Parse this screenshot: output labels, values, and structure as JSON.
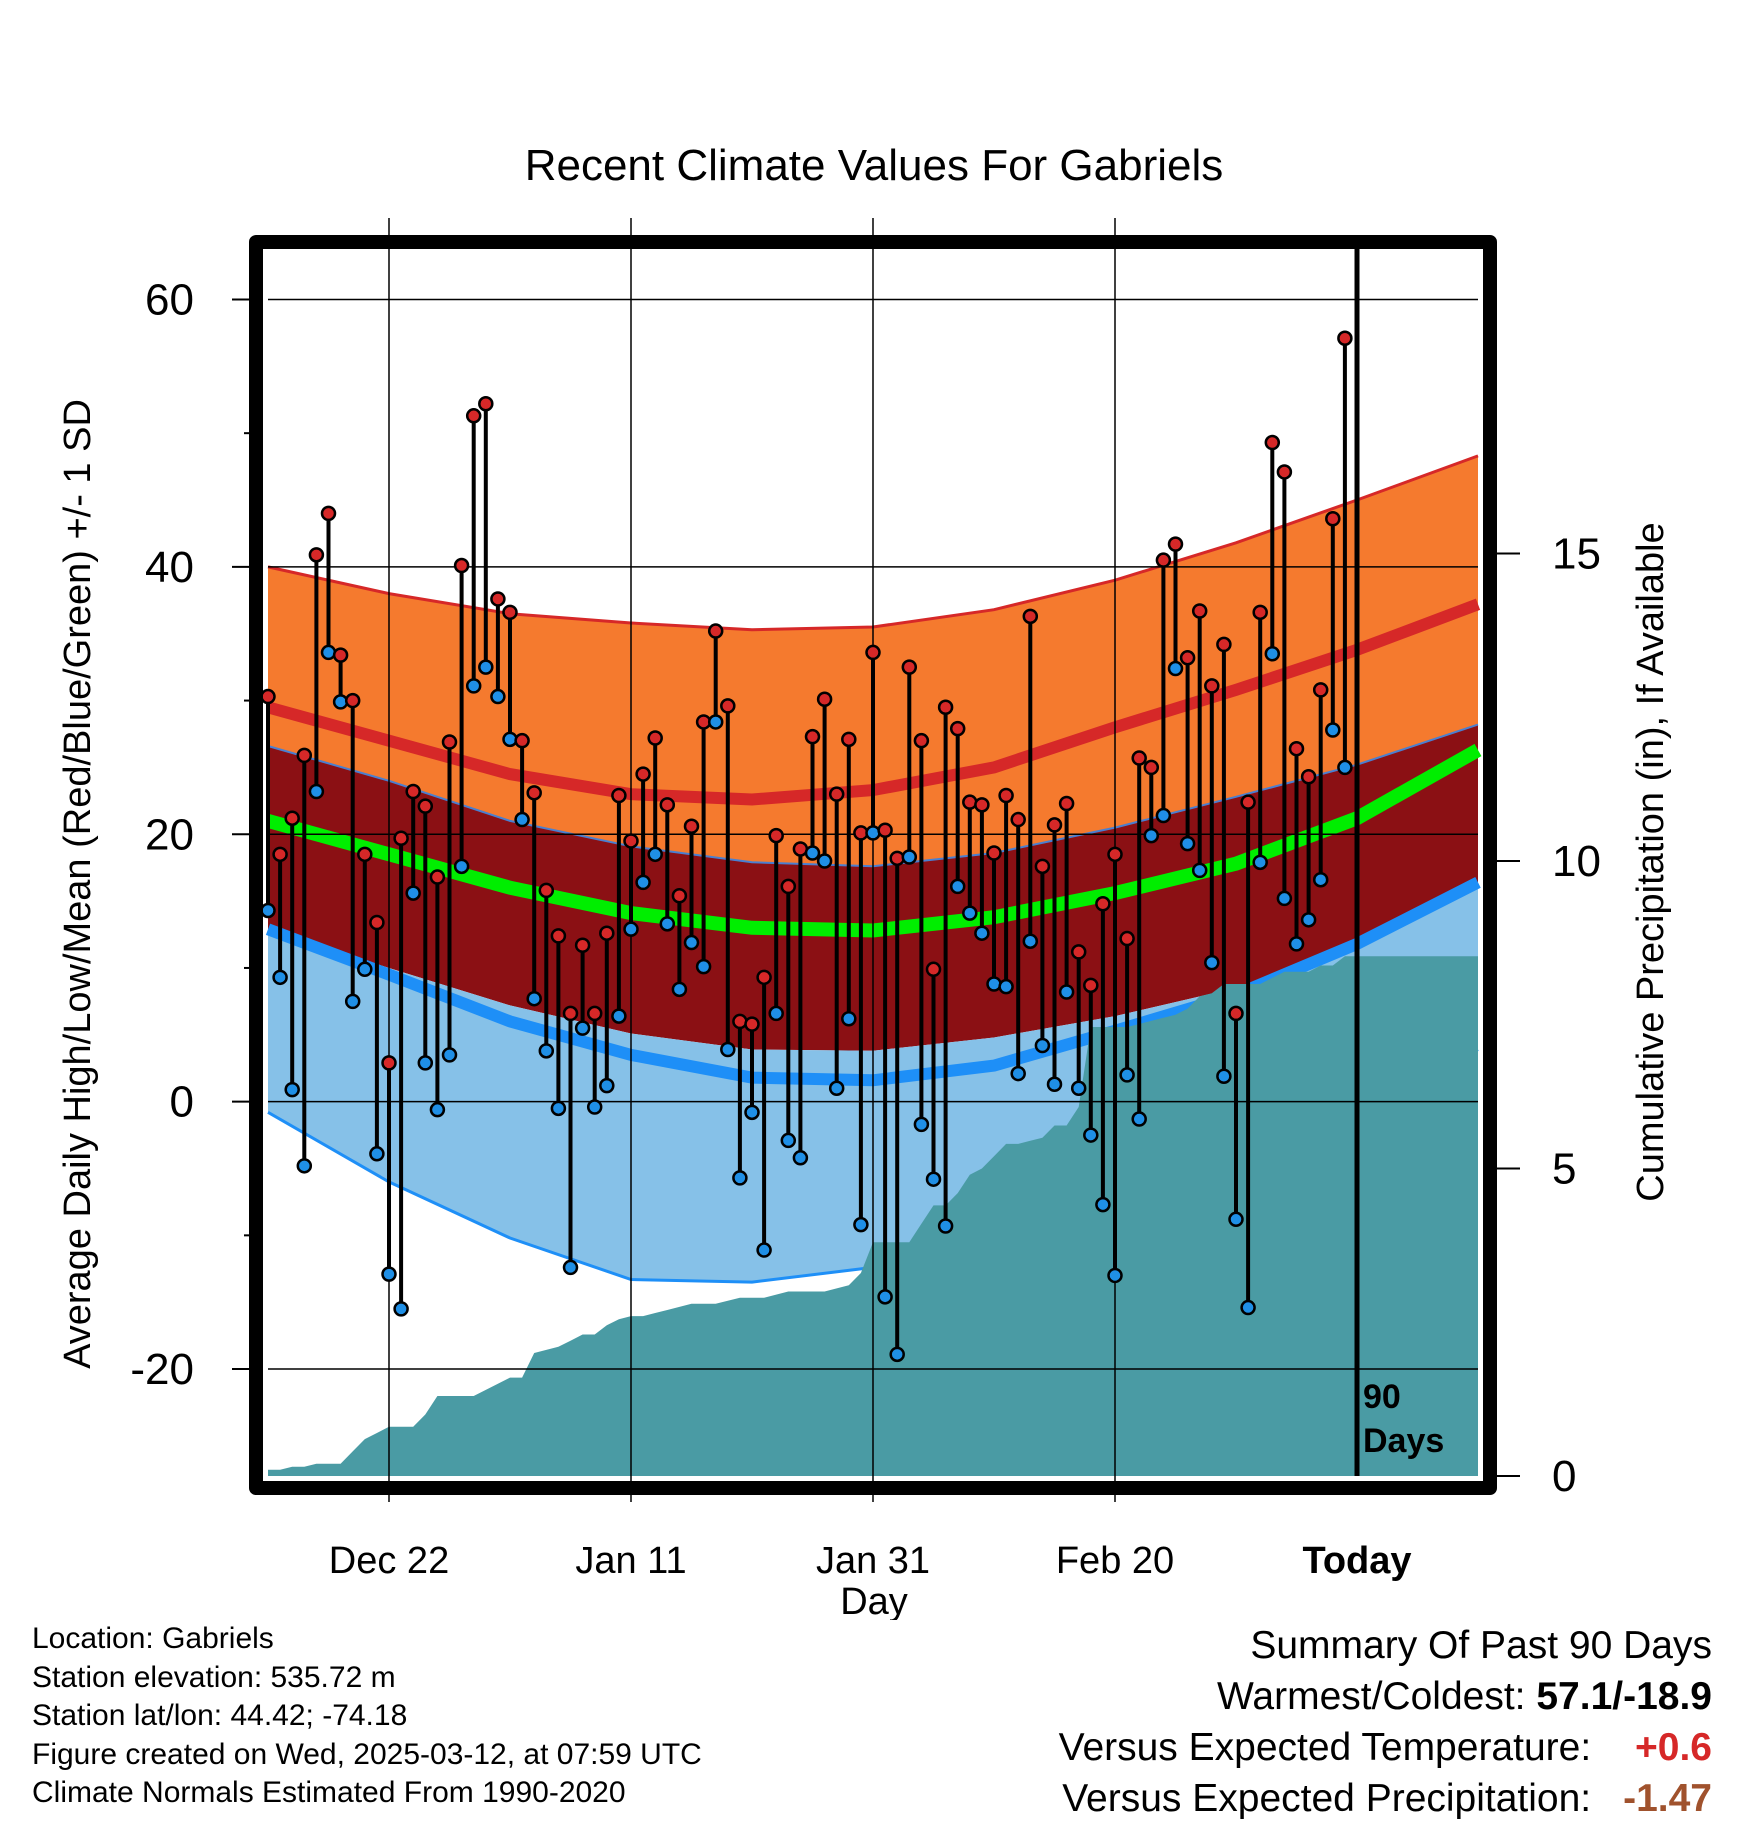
{
  "chart_data": {
    "type": "line",
    "title": "Recent Climate Values For Gabriels",
    "xlabel": "Day",
    "ylabel_left": "Average Daily High/Low/Mean (Red/Blue/Green) +/- 1 SD",
    "ylabel_right": "Cumulative Precipitation (in), If Available",
    "x_ticks": [
      {
        "day": 10,
        "label": "Dec 22"
      },
      {
        "day": 30,
        "label": "Jan 11"
      },
      {
        "day": 50,
        "label": "Jan 31"
      },
      {
        "day": 70,
        "label": "Feb 20"
      },
      {
        "day": 90,
        "label": "Today"
      }
    ],
    "xlim": [
      0,
      100
    ],
    "ylim_temp": [
      -28,
      64
    ],
    "y_ticks_temp": [
      -20,
      0,
      20,
      40,
      60
    ],
    "ylim_precip": [
      0,
      20
    ],
    "y_ticks_precip": [
      0,
      5,
      10,
      15
    ],
    "today_marker": {
      "day": 90,
      "label_line1": "90",
      "label_line2": "Days"
    },
    "grid": true,
    "colors": {
      "high_band": "#f57a2e",
      "normal_high": "#d62828",
      "normal_mean": "#00ee00",
      "mean_band": "#8b1014",
      "low_band": "#86c1e8",
      "normal_low": "#1e8ff7",
      "precip": "#4a9ba4",
      "high_marker": "#d62828",
      "low_marker": "#1f8fe6"
    },
    "normals": {
      "days": [
        0,
        10,
        20,
        30,
        40,
        50,
        60,
        70,
        80,
        90,
        100
      ],
      "high_upper": [
        40,
        38,
        36.5,
        35.8,
        35.3,
        35.5,
        36.8,
        39,
        41.8,
        45,
        48.3
      ],
      "high_normal": [
        29.5,
        27,
        24.5,
        23,
        22.6,
        23.3,
        25,
        28,
        30.8,
        33.8,
        37.2
      ],
      "high_lower": [
        21.8,
        18.7,
        15.7,
        13.5,
        12.6,
        12.8,
        14.6,
        17.6,
        20.7,
        23.8,
        28.2
      ],
      "mean_upper": [
        26.6,
        24,
        21,
        19.1,
        17.9,
        17.6,
        18.6,
        20.5,
        22.8,
        25.2,
        28.2
      ],
      "mean_normal": [
        21,
        18.5,
        16,
        14.1,
        13,
        12.8,
        13.8,
        15.6,
        17.8,
        21.2,
        26.3
      ],
      "low_upper": [
        12.9,
        10,
        7.2,
        5.1,
        3.9,
        3.8,
        4.8,
        6.4,
        8.5,
        11.6,
        16.2
      ],
      "low_normal": [
        12.9,
        10,
        7.2,
        5.1,
        3.9,
        3.8,
        4.8,
        6.4,
        8.5,
        11.6,
        16.2
      ],
      "low_normal_value": [
        12.9,
        9.5,
        6,
        3.5,
        1.8,
        1.6,
        2.7,
        5.3,
        8,
        11.8,
        16.4
      ],
      "low_lower": [
        -0.8,
        -6,
        -10.2,
        -13.3,
        -13.5,
        -12.4,
        -10,
        -8.2,
        -5.5,
        -0.4,
        3.9
      ]
    },
    "series": [
      {
        "name": "Daily High",
        "values": [
          30.3,
          18.5,
          21.2,
          25.9,
          40.9,
          44.0,
          33.4,
          30.0,
          18.5,
          13.4,
          2.9,
          19.7,
          23.2,
          22.1,
          16.8,
          26.9,
          40.1,
          51.3,
          52.2,
          37.6,
          36.6,
          27.0,
          23.1,
          15.8,
          12.4,
          6.6,
          11.7,
          6.6,
          12.6,
          22.9,
          19.5,
          24.5,
          27.2,
          22.2,
          15.4,
          20.6,
          28.4,
          35.2,
          29.6,
          6.0,
          5.8,
          9.3,
          19.9,
          16.1,
          18.9,
          27.3,
          30.1,
          23.0,
          27.1,
          20.1,
          33.6,
          20.3,
          18.2,
          32.5,
          27.0,
          9.9,
          29.5,
          27.9,
          22.4,
          22.2,
          18.6,
          22.9,
          21.1,
          36.3,
          17.6,
          20.7,
          22.3,
          11.2,
          8.7,
          14.8,
          18.5,
          12.2,
          25.7,
          25.0,
          40.5,
          41.7,
          33.2,
          36.7,
          31.1,
          34.2,
          6.6,
          22.4,
          36.6,
          49.3,
          47.1,
          26.4,
          24.3,
          30.8,
          43.6,
          57.1
        ]
      },
      {
        "name": "Daily Low",
        "values": [
          14.3,
          9.3,
          0.9,
          -4.8,
          23.2,
          33.6,
          29.9,
          7.5,
          9.9,
          -3.9,
          -12.9,
          -15.5,
          15.6,
          2.9,
          -0.6,
          3.5,
          17.6,
          31.1,
          32.5,
          30.3,
          27.1,
          21.1,
          7.7,
          3.8,
          -0.5,
          -12.4,
          5.5,
          -0.4,
          1.2,
          6.4,
          12.9,
          16.4,
          18.5,
          13.3,
          8.4,
          11.9,
          10.1,
          28.4,
          3.9,
          -5.7,
          -0.8,
          -11.1,
          6.6,
          -2.9,
          -4.2,
          18.6,
          18.0,
          1.0,
          6.2,
          -9.2,
          20.1,
          -14.6,
          -18.9,
          18.3,
          -1.7,
          -5.8,
          -9.3,
          16.1,
          14.1,
          12.6,
          8.8,
          8.6,
          2.1,
          12.0,
          4.2,
          1.3,
          8.2,
          1.0,
          -2.5,
          -7.7,
          -13.0,
          2.0,
          -1.3,
          19.9,
          21.4,
          32.4,
          19.3,
          17.3,
          10.4,
          1.9,
          -8.8,
          -15.4,
          17.9,
          33.5,
          15.2,
          11.8,
          13.6,
          16.6,
          27.8,
          25.0
        ]
      }
    ],
    "precip_cumulative": {
      "days": [
        0,
        1,
        2,
        3,
        4,
        5,
        6,
        7,
        8,
        9,
        10,
        11,
        12,
        13,
        14,
        15,
        16,
        17,
        18,
        19,
        20,
        21,
        22,
        23,
        24,
        25,
        26,
        27,
        28,
        29,
        30,
        31,
        32,
        33,
        34,
        35,
        36,
        37,
        38,
        39,
        40,
        41,
        42,
        43,
        44,
        45,
        46,
        47,
        48,
        49,
        50,
        51,
        52,
        53,
        54,
        55,
        56,
        57,
        58,
        59,
        60,
        61,
        62,
        63,
        64,
        65,
        66,
        67,
        68,
        69,
        70,
        71,
        72,
        73,
        74,
        75,
        76,
        77,
        78,
        79,
        80,
        81,
        82,
        83,
        84,
        85,
        86,
        87,
        88,
        89,
        90,
        91,
        92,
        93,
        94,
        95,
        96,
        97,
        98,
        99,
        100
      ],
      "values": [
        0.1,
        0.1,
        0.15,
        0.15,
        0.2,
        0.2,
        0.2,
        0.4,
        0.6,
        0.7,
        0.8,
        0.8,
        0.8,
        1.0,
        1.3,
        1.3,
        1.3,
        1.3,
        1.4,
        1.5,
        1.6,
        1.6,
        2.0,
        2.05,
        2.1,
        2.2,
        2.3,
        2.3,
        2.45,
        2.55,
        2.6,
        2.6,
        2.65,
        2.7,
        2.75,
        2.8,
        2.8,
        2.8,
        2.85,
        2.9,
        2.9,
        2.9,
        2.95,
        3.0,
        3.0,
        3.0,
        3.0,
        3.05,
        3.1,
        3.3,
        3.8,
        3.8,
        3.8,
        3.8,
        4.1,
        4.4,
        4.4,
        4.6,
        4.9,
        5.0,
        5.2,
        5.4,
        5.4,
        5.45,
        5.5,
        5.7,
        5.7,
        6.0,
        7.3,
        7.3,
        7.3,
        7.3,
        7.35,
        7.4,
        7.45,
        7.5,
        7.6,
        7.8,
        7.85,
        8.0,
        8.0,
        8.0,
        8.0,
        8.1,
        8.2,
        8.2,
        8.2,
        8.3,
        8.3,
        8.45,
        8.45,
        8.45,
        8.45,
        8.45,
        8.45,
        8.45,
        8.45,
        8.45,
        8.45,
        8.45,
        8.45
      ]
    }
  },
  "info": {
    "location": "Location: Gabriels",
    "elevation": "Station elevation: 535.72 m",
    "latlon": "Station lat/lon: 44.42; -74.18",
    "created": "Figure created on Wed, 2025-03-12, at 07:59 UTC",
    "normals": "Climate Normals Estimated From 1990-2020"
  },
  "summary": {
    "title": "Summary Of Past 90 Days",
    "warmest_label": "Warmest/Coldest:",
    "warmest_value": "57.1/-18.9",
    "temp_label": "Versus Expected Temperature:",
    "temp_value": "+0.6",
    "temp_color": "#d62828",
    "precip_label": "Versus Expected Precipitation:",
    "precip_value": "-1.47",
    "precip_color": "#a0522d"
  }
}
